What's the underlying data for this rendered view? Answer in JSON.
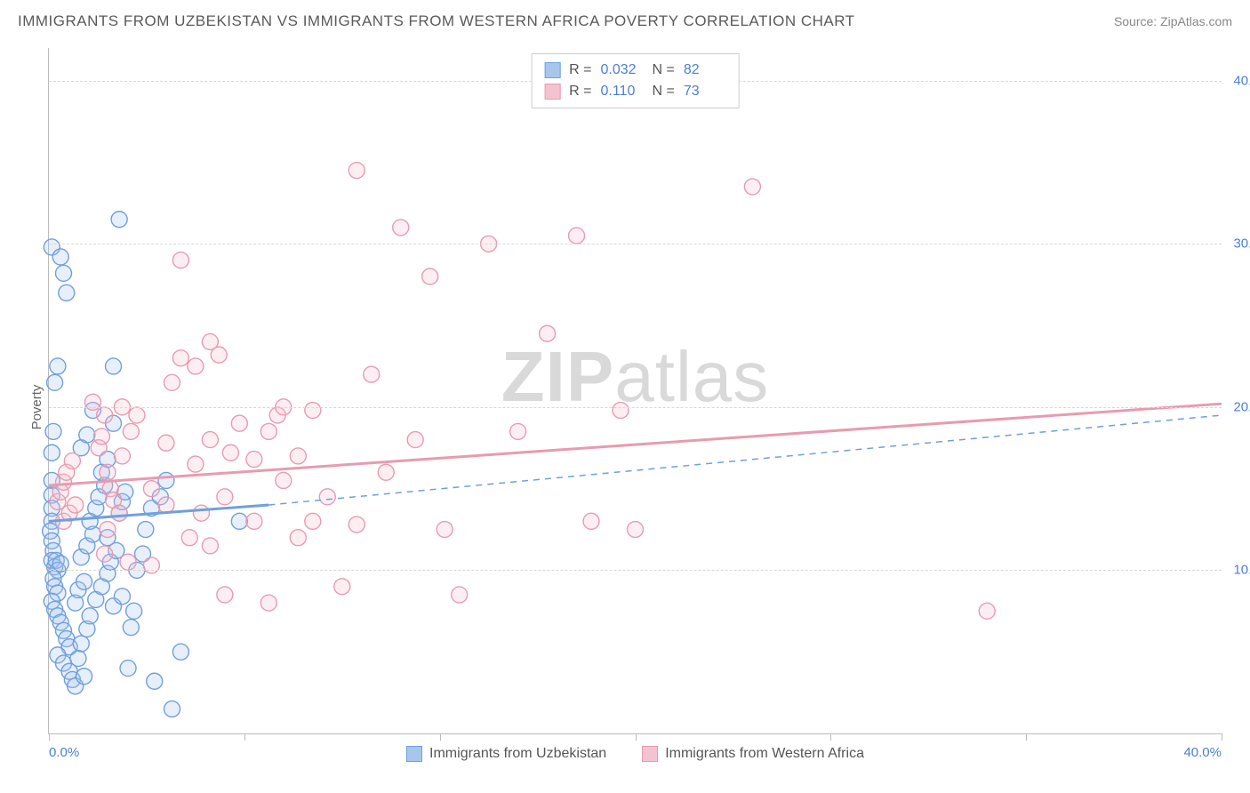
{
  "chart": {
    "type": "scatter",
    "title": "IMMIGRANTS FROM UZBEKISTAN VS IMMIGRANTS FROM WESTERN AFRICA POVERTY CORRELATION CHART",
    "source": "Source: ZipAtlas.com",
    "ylabel": "Poverty",
    "watermark_bold": "ZIP",
    "watermark_rest": "atlas",
    "background_color": "#ffffff",
    "grid_color": "#d8d8d8",
    "axis_color": "#bbbbbb",
    "tick_label_color": "#4a7fd8",
    "xlim": [
      0,
      40
    ],
    "ylim": [
      0,
      42
    ],
    "y_ticks": [
      10,
      20,
      30,
      40
    ],
    "y_tick_labels": [
      "10.0%",
      "20.0%",
      "30.0%",
      "40.0%"
    ],
    "x_ticks": [
      0,
      6.67,
      13.33,
      20,
      26.67,
      33.33,
      40
    ],
    "x_tick_labels_shown": {
      "0": "0.0%",
      "40": "40.0%"
    },
    "marker_radius": 9,
    "marker_stroke_width": 1.4,
    "marker_fill_opacity": 0.28,
    "trend_line_width": 3,
    "series": [
      {
        "id": "uzbekistan",
        "label": "Immigrants from Uzbekistan",
        "color_stroke": "#6fa0de",
        "color_fill": "#a8c6ec",
        "R": "0.032",
        "N": "82",
        "trend": {
          "x1": 0,
          "y1": 13.0,
          "x2": 7.5,
          "y2": 14.0,
          "dashed_extension_to_x": 40,
          "dashed_extension_to_y": 19.5
        },
        "points": [
          [
            0.1,
            29.8
          ],
          [
            0.4,
            29.2
          ],
          [
            0.5,
            28.2
          ],
          [
            0.6,
            27.0
          ],
          [
            0.3,
            22.5
          ],
          [
            0.2,
            21.5
          ],
          [
            0.15,
            18.5
          ],
          [
            0.1,
            17.2
          ],
          [
            0.1,
            15.5
          ],
          [
            0.1,
            14.6
          ],
          [
            0.1,
            13.8
          ],
          [
            0.1,
            13.0
          ],
          [
            0.05,
            12.4
          ],
          [
            0.1,
            11.8
          ],
          [
            0.15,
            11.2
          ],
          [
            0.1,
            10.6
          ],
          [
            0.2,
            10.2
          ],
          [
            0.25,
            10.6
          ],
          [
            0.3,
            10.0
          ],
          [
            0.4,
            10.4
          ],
          [
            0.15,
            9.5
          ],
          [
            0.2,
            9.0
          ],
          [
            0.3,
            8.6
          ],
          [
            0.1,
            8.1
          ],
          [
            0.2,
            7.6
          ],
          [
            0.3,
            7.2
          ],
          [
            0.4,
            6.8
          ],
          [
            0.5,
            6.3
          ],
          [
            0.6,
            5.8
          ],
          [
            0.7,
            5.3
          ],
          [
            0.3,
            4.8
          ],
          [
            0.5,
            4.3
          ],
          [
            0.7,
            3.8
          ],
          [
            0.8,
            3.3
          ],
          [
            0.9,
            2.9
          ],
          [
            1.2,
            3.5
          ],
          [
            1.0,
            4.6
          ],
          [
            1.1,
            5.5
          ],
          [
            1.3,
            6.4
          ],
          [
            1.4,
            7.2
          ],
          [
            0.9,
            8.0
          ],
          [
            1.0,
            8.8
          ],
          [
            1.2,
            9.3
          ],
          [
            1.1,
            10.8
          ],
          [
            1.3,
            11.5
          ],
          [
            1.5,
            12.2
          ],
          [
            1.4,
            13.0
          ],
          [
            1.6,
            13.8
          ],
          [
            1.7,
            14.5
          ],
          [
            1.9,
            15.2
          ],
          [
            1.8,
            16.0
          ],
          [
            2.0,
            16.8
          ],
          [
            1.1,
            17.5
          ],
          [
            1.3,
            18.3
          ],
          [
            2.2,
            19.0
          ],
          [
            1.5,
            19.8
          ],
          [
            2.2,
            22.5
          ],
          [
            2.4,
            31.5
          ],
          [
            1.6,
            8.2
          ],
          [
            1.8,
            9.0
          ],
          [
            2.0,
            9.8
          ],
          [
            2.1,
            10.5
          ],
          [
            2.3,
            11.2
          ],
          [
            2.0,
            12.0
          ],
          [
            2.4,
            13.5
          ],
          [
            2.5,
            14.2
          ],
          [
            2.6,
            14.8
          ],
          [
            2.2,
            7.8
          ],
          [
            2.5,
            8.4
          ],
          [
            2.8,
            6.5
          ],
          [
            2.9,
            7.5
          ],
          [
            3.0,
            10.0
          ],
          [
            3.2,
            11.0
          ],
          [
            3.3,
            12.5
          ],
          [
            3.5,
            13.8
          ],
          [
            3.8,
            14.5
          ],
          [
            2.7,
            4.0
          ],
          [
            3.6,
            3.2
          ],
          [
            4.5,
            5.0
          ],
          [
            4.0,
            15.5
          ],
          [
            4.2,
            1.5
          ],
          [
            6.5,
            13.0
          ]
        ]
      },
      {
        "id": "westafrica",
        "label": "Immigrants from Western Africa",
        "color_stroke": "#e89bb0",
        "color_fill": "#f4c3d0",
        "R": "0.110",
        "N": "73",
        "trend": {
          "x1": 0,
          "y1": 15.2,
          "x2": 40,
          "y2": 20.2
        },
        "points": [
          [
            0.3,
            14.2
          ],
          [
            0.4,
            14.8
          ],
          [
            0.5,
            15.4
          ],
          [
            0.6,
            16.0
          ],
          [
            0.8,
            16.7
          ],
          [
            0.5,
            13.0
          ],
          [
            0.7,
            13.5
          ],
          [
            0.9,
            14.0
          ],
          [
            1.7,
            17.5
          ],
          [
            1.8,
            18.2
          ],
          [
            1.9,
            19.5
          ],
          [
            1.5,
            20.3
          ],
          [
            2.0,
            16.0
          ],
          [
            2.1,
            15.0
          ],
          [
            2.2,
            14.3
          ],
          [
            2.4,
            13.5
          ],
          [
            2.5,
            17.0
          ],
          [
            2.8,
            18.5
          ],
          [
            3.0,
            19.5
          ],
          [
            1.9,
            11.0
          ],
          [
            2.7,
            10.5
          ],
          [
            2.0,
            12.5
          ],
          [
            2.5,
            20.0
          ],
          [
            3.5,
            15.0
          ],
          [
            4.0,
            17.8
          ],
          [
            4.2,
            21.5
          ],
          [
            4.5,
            23.0
          ],
          [
            4.0,
            14.0
          ],
          [
            4.5,
            29.0
          ],
          [
            5.0,
            16.5
          ],
          [
            5.5,
            18.0
          ],
          [
            5.2,
            13.5
          ],
          [
            3.5,
            10.3
          ],
          [
            5.0,
            22.5
          ],
          [
            5.5,
            24.0
          ],
          [
            5.8,
            23.2
          ],
          [
            6.0,
            14.5
          ],
          [
            6.2,
            17.2
          ],
          [
            6.5,
            19.0
          ],
          [
            6.0,
            8.5
          ],
          [
            7.0,
            16.8
          ],
          [
            7.5,
            18.5
          ],
          [
            7.0,
            13.0
          ],
          [
            7.8,
            19.5
          ],
          [
            7.5,
            8.0
          ],
          [
            8.0,
            15.5
          ],
          [
            8.5,
            17.0
          ],
          [
            8.0,
            20.0
          ],
          [
            8.5,
            12.0
          ],
          [
            9.0,
            13.0
          ],
          [
            9.5,
            14.5
          ],
          [
            9.0,
            19.8
          ],
          [
            10.0,
            9.0
          ],
          [
            10.5,
            12.8
          ],
          [
            11.0,
            22.0
          ],
          [
            11.5,
            16.0
          ],
          [
            10.5,
            34.5
          ],
          [
            12.0,
            31.0
          ],
          [
            12.5,
            18.0
          ],
          [
            13.0,
            28.0
          ],
          [
            13.5,
            12.5
          ],
          [
            14.0,
            8.5
          ],
          [
            15.0,
            30.0
          ],
          [
            16.0,
            18.5
          ],
          [
            17.0,
            24.5
          ],
          [
            18.0,
            30.5
          ],
          [
            18.5,
            13.0
          ],
          [
            19.5,
            19.8
          ],
          [
            20.0,
            12.5
          ],
          [
            24.0,
            33.5
          ],
          [
            32.0,
            7.5
          ],
          [
            5.5,
            11.5
          ],
          [
            4.8,
            12.0
          ]
        ]
      }
    ]
  }
}
